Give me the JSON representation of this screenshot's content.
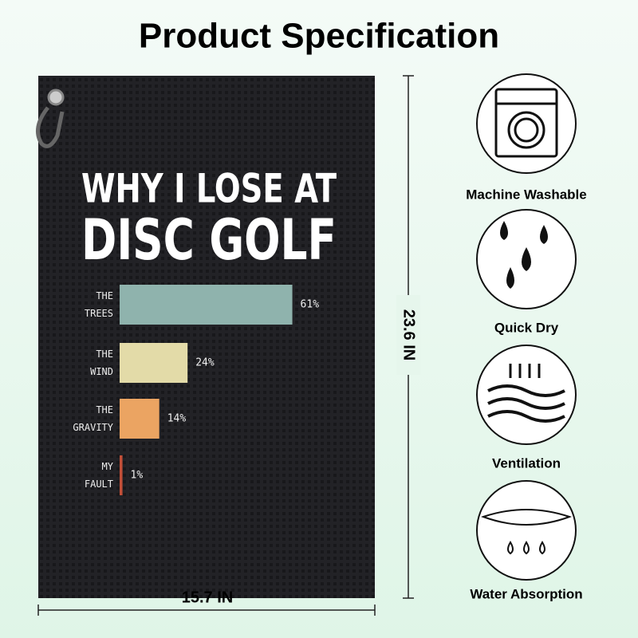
{
  "header": {
    "title": "Product Specification"
  },
  "chart_data": {
    "type": "bar",
    "orientation": "horizontal",
    "title_lines": [
      "WHY I LOSE AT",
      "DISC GOLF"
    ],
    "categories": [
      "THE TREES",
      "THE WIND",
      "THE GRAVITY",
      "MY FAULT"
    ],
    "values": [
      61,
      24,
      14,
      1
    ],
    "value_labels": [
      "61%",
      "24%",
      "14%",
      "1%"
    ],
    "colors": [
      "#8fb3ad",
      "#e3dba8",
      "#eba462",
      "#c24f38"
    ]
  },
  "dimensions": {
    "height": "23.6 IN",
    "width": "15.7 IN"
  },
  "features": [
    {
      "label": "Machine Washable"
    },
    {
      "label": "Quick Dry"
    },
    {
      "label": "Ventilation"
    },
    {
      "label": "Water Absorption"
    }
  ]
}
